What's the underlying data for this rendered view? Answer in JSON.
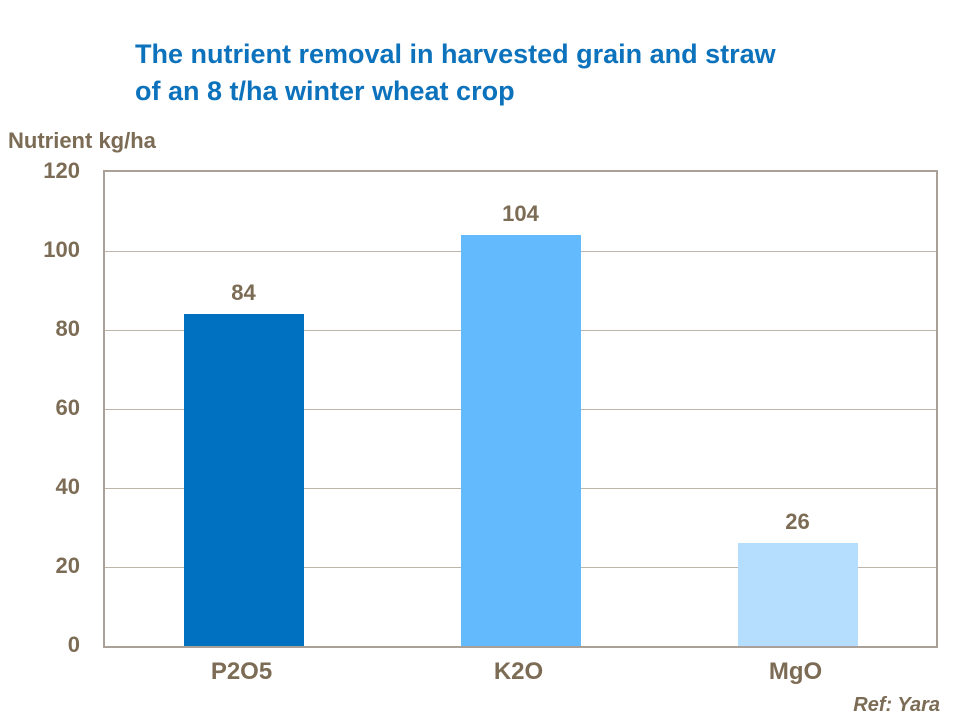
{
  "chart_data": {
    "type": "bar",
    "title_line1": "The nutrient removal in harvested grain and straw",
    "title_line2": "of an 8 t/ha winter wheat crop",
    "ylabel": "Nutrient kg/ha",
    "categories": [
      "P2O5",
      "K2O",
      "MgO"
    ],
    "values": [
      84,
      104,
      26
    ],
    "bar_colors": [
      "#0070C0",
      "#63BAFC",
      "#B5DDFD"
    ],
    "yticks": [
      0,
      20,
      40,
      60,
      80,
      100,
      120
    ],
    "ylim": [
      0,
      120
    ],
    "grid": "horizontal",
    "legend": "none",
    "ref": "Ref: Yara",
    "colors": {
      "title": "#0D72BC",
      "text": "#7C6C55",
      "plot_border": "#A9A098",
      "gridline": "#BEB6A8"
    }
  }
}
